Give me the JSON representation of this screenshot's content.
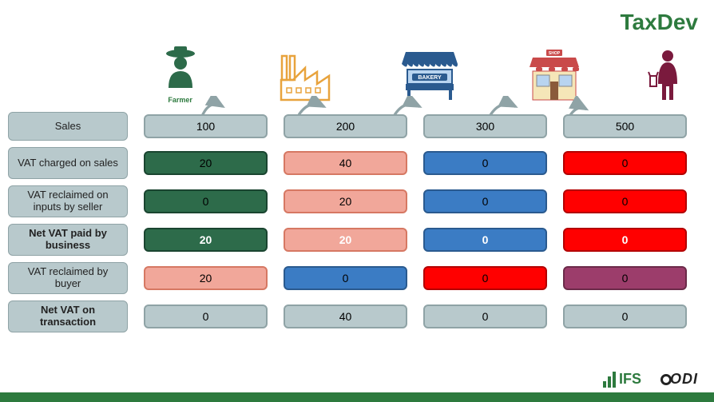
{
  "brand": "TaxDev",
  "colors": {
    "gray_bg": "#b8c9cc",
    "gray_border": "#8fa3a6",
    "green_dark": "#2d6b4a",
    "green_border": "#1a4530",
    "salmon": "#f1a79a",
    "salmon_border": "#d67863",
    "blue": "#3b7cc4",
    "blue_border": "#2a5a8f",
    "red": "#ff0000",
    "red_border": "#b30000",
    "purple": "#9c3d6b",
    "purple_border": "#6b2a49",
    "white_text": "#ffffff",
    "black_text": "#000000",
    "brand_green": "#2d7a3e"
  },
  "icons": [
    {
      "name": "farmer",
      "label": "Farmer"
    },
    {
      "name": "factory",
      "label": ""
    },
    {
      "name": "bakery",
      "label": ""
    },
    {
      "name": "shop",
      "label": ""
    },
    {
      "name": "consumer",
      "label": ""
    }
  ],
  "rows": [
    {
      "label": "Sales",
      "bold": false,
      "tall": false,
      "cells": [
        {
          "v": "100",
          "bg": "gray_bg",
          "border": "gray_border",
          "fg": "black_text",
          "bold": false
        },
        {
          "v": "200",
          "bg": "gray_bg",
          "border": "gray_border",
          "fg": "black_text",
          "bold": false
        },
        {
          "v": "300",
          "bg": "gray_bg",
          "border": "gray_border",
          "fg": "black_text",
          "bold": false
        },
        {
          "v": "500",
          "bg": "gray_bg",
          "border": "gray_border",
          "fg": "black_text",
          "bold": false
        }
      ]
    },
    {
      "label": "VAT charged on sales",
      "bold": false,
      "tall": true,
      "cells": [
        {
          "v": "20",
          "bg": "green_dark",
          "border": "green_border",
          "fg": "black_text",
          "bold": false
        },
        {
          "v": "40",
          "bg": "salmon",
          "border": "salmon_border",
          "fg": "black_text",
          "bold": false
        },
        {
          "v": "0",
          "bg": "blue",
          "border": "blue_border",
          "fg": "black_text",
          "bold": false
        },
        {
          "v": "0",
          "bg": "red",
          "border": "red_border",
          "fg": "black_text",
          "bold": false
        }
      ]
    },
    {
      "label": "VAT reclaimed on inputs by seller",
      "bold": false,
      "tall": true,
      "cells": [
        {
          "v": "0",
          "bg": "green_dark",
          "border": "green_border",
          "fg": "black_text",
          "bold": false
        },
        {
          "v": "20",
          "bg": "salmon",
          "border": "salmon_border",
          "fg": "black_text",
          "bold": false
        },
        {
          "v": "0",
          "bg": "blue",
          "border": "blue_border",
          "fg": "black_text",
          "bold": false
        },
        {
          "v": "0",
          "bg": "red",
          "border": "red_border",
          "fg": "black_text",
          "bold": false
        }
      ]
    },
    {
      "label": "Net VAT paid by business",
      "bold": true,
      "tall": true,
      "cells": [
        {
          "v": "20",
          "bg": "green_dark",
          "border": "green_border",
          "fg": "white_text",
          "bold": true
        },
        {
          "v": "20",
          "bg": "salmon",
          "border": "salmon_border",
          "fg": "white_text",
          "bold": true
        },
        {
          "v": "0",
          "bg": "blue",
          "border": "blue_border",
          "fg": "white_text",
          "bold": true
        },
        {
          "v": "0",
          "bg": "red",
          "border": "red_border",
          "fg": "white_text",
          "bold": true
        }
      ]
    },
    {
      "label": "VAT reclaimed by buyer",
      "bold": false,
      "tall": true,
      "cells": [
        {
          "v": "20",
          "bg": "salmon",
          "border": "salmon_border",
          "fg": "black_text",
          "bold": false
        },
        {
          "v": "0",
          "bg": "blue",
          "border": "blue_border",
          "fg": "black_text",
          "bold": false
        },
        {
          "v": "0",
          "bg": "red",
          "border": "red_border",
          "fg": "black_text",
          "bold": false
        },
        {
          "v": "0",
          "bg": "purple",
          "border": "purple_border",
          "fg": "black_text",
          "bold": false
        }
      ]
    },
    {
      "label": "Net VAT on transaction",
      "bold": true,
      "tall": true,
      "cells": [
        {
          "v": "0",
          "bg": "gray_bg",
          "border": "gray_border",
          "fg": "black_text",
          "bold": false
        },
        {
          "v": "40",
          "bg": "gray_bg",
          "border": "gray_border",
          "fg": "black_text",
          "bold": false
        },
        {
          "v": "0",
          "bg": "gray_bg",
          "border": "gray_border",
          "fg": "black_text",
          "bold": false
        },
        {
          "v": "0",
          "bg": "gray_bg",
          "border": "gray_border",
          "fg": "black_text",
          "bold": false
        }
      ]
    }
  ],
  "footer": {
    "ifs": "IFS",
    "odi": "ODI"
  }
}
